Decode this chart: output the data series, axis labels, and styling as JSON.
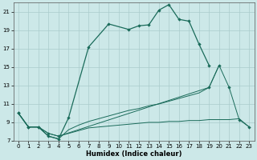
{
  "xlabel": "Humidex (Indice chaleur)",
  "background_color": "#cce8e8",
  "grid_color": "#aacccc",
  "line_color": "#1a6b5a",
  "xlim": [
    -0.5,
    23.5
  ],
  "ylim": [
    7,
    22
  ],
  "yticks": [
    7,
    9,
    11,
    13,
    15,
    17,
    19,
    21
  ],
  "xticks": [
    0,
    1,
    2,
    3,
    4,
    5,
    6,
    7,
    8,
    9,
    10,
    11,
    12,
    13,
    14,
    15,
    16,
    17,
    18,
    19,
    20,
    21,
    22,
    23
  ],
  "line1_x": [
    0,
    1,
    2,
    3,
    4,
    5,
    7,
    9,
    11,
    12,
    13,
    14,
    15,
    16,
    17,
    18,
    19
  ],
  "line1_y": [
    10,
    8.5,
    8.5,
    7.5,
    7.2,
    9.5,
    17.2,
    19.7,
    19.1,
    19.5,
    19.6,
    21.2,
    21.8,
    20.2,
    20.0,
    17.5,
    15.2
  ],
  "line2_x": [
    0,
    1,
    2,
    3,
    4,
    5,
    6,
    7,
    8,
    9,
    10,
    11,
    12,
    13,
    14,
    15,
    16,
    17,
    18,
    19,
    20
  ],
  "line2_y": [
    10,
    8.5,
    8.5,
    7.5,
    7.2,
    8.2,
    8.7,
    9.1,
    9.4,
    9.7,
    10.0,
    10.3,
    10.5,
    10.8,
    11.0,
    11.3,
    11.6,
    11.9,
    12.2,
    12.8,
    15.2
  ],
  "line3_x": [
    0,
    1,
    2,
    3,
    4,
    5,
    6,
    7,
    8,
    9,
    10,
    11,
    12,
    13,
    14,
    15,
    16,
    17,
    18,
    19,
    20,
    21,
    22,
    23
  ],
  "line3_y": [
    10,
    8.5,
    8.5,
    7.8,
    7.5,
    7.8,
    8.1,
    8.4,
    8.5,
    8.6,
    8.7,
    8.8,
    8.9,
    9.0,
    9.0,
    9.1,
    9.1,
    9.2,
    9.2,
    9.3,
    9.3,
    9.3,
    9.4,
    8.5
  ],
  "line4_x": [
    0,
    1,
    2,
    3,
    4,
    19,
    20,
    21,
    22,
    23
  ],
  "line4_y": [
    10,
    8.5,
    8.5,
    7.8,
    7.5,
    12.8,
    15.2,
    12.8,
    9.3,
    8.5
  ]
}
